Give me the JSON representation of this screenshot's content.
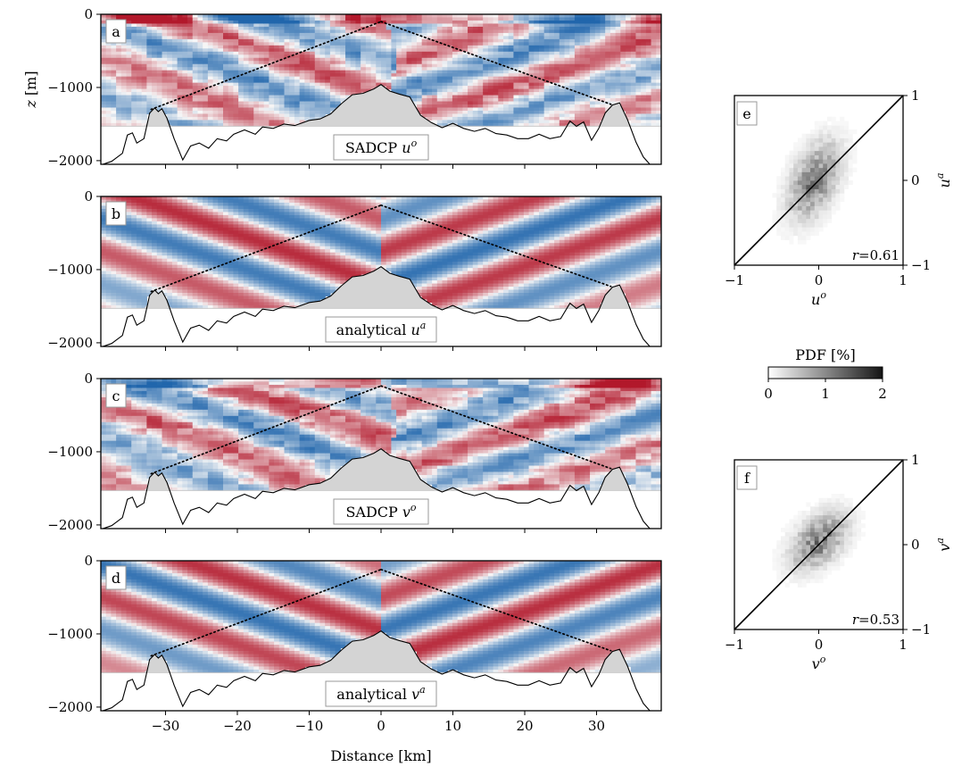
{
  "chart_data": [
    {
      "panel": "a",
      "type": "heatmap",
      "label_text": "SADCP",
      "label_var": "u",
      "label_sup": "o",
      "ylabel_var": "z",
      "ylabel_unit": "[m]",
      "xlim": [
        -39,
        39
      ],
      "ylim": [
        -2050,
        0
      ],
      "x_ticks": [
        -30,
        -20,
        -10,
        0,
        10,
        20,
        30
      ],
      "y_ticks": [
        0,
        -1000,
        -2000
      ],
      "y_tick_labels": [
        "0",
        "−1000",
        "−2000"
      ],
      "x_tick_labels_shown": false,
      "field_kind": "observed",
      "ray_left": [
        [
          -32,
          -1300
        ],
        [
          0,
          -100
        ]
      ],
      "ray_right": [
        [
          0,
          -100
        ],
        [
          32,
          -1230
        ]
      ],
      "colors": {
        "positive": "#b2182b",
        "negative": "#2166ac",
        "neutral": "#f7f7f7",
        "topography": "#d4d4d4"
      }
    },
    {
      "panel": "b",
      "type": "heatmap",
      "label_text": "analytical",
      "label_var": "u",
      "label_sup": "a",
      "xlim": [
        -39,
        39
      ],
      "ylim": [
        -2050,
        0
      ],
      "x_ticks": [
        -30,
        -20,
        -10,
        0,
        10,
        20,
        30
      ],
      "y_ticks": [
        0,
        -1000,
        -2000
      ],
      "y_tick_labels": [
        "0",
        "−1000",
        "−2000"
      ],
      "x_tick_labels_shown": false,
      "field_kind": "analytical",
      "ray_left": [
        [
          -32,
          -1300
        ],
        [
          0,
          -120
        ]
      ],
      "ray_right": [
        [
          0,
          -120
        ],
        [
          32,
          -1230
        ]
      ]
    },
    {
      "panel": "c",
      "type": "heatmap",
      "label_text": "SADCP",
      "label_var": "v",
      "label_sup": "o",
      "xlim": [
        -39,
        39
      ],
      "ylim": [
        -2050,
        0
      ],
      "x_ticks": [
        -30,
        -20,
        -10,
        0,
        10,
        20,
        30
      ],
      "y_ticks": [
        0,
        -1000,
        -2000
      ],
      "y_tick_labels": [
        "0",
        "−1000",
        "−2000"
      ],
      "x_tick_labels_shown": false,
      "field_kind": "observed",
      "ray_left": [
        [
          -32,
          -1300
        ],
        [
          0,
          -100
        ]
      ],
      "ray_right": [
        [
          0,
          -100
        ],
        [
          32,
          -1230
        ]
      ]
    },
    {
      "panel": "d",
      "type": "heatmap",
      "label_text": "analytical",
      "label_var": "v",
      "label_sup": "a",
      "xlabel": "Distance [km]",
      "xlim": [
        -39,
        39
      ],
      "ylim": [
        -2050,
        0
      ],
      "x_ticks": [
        -30,
        -20,
        -10,
        0,
        10,
        20,
        30
      ],
      "x_tick_labels": [
        "−30",
        "−20",
        "−10",
        "0",
        "10",
        "20",
        "30"
      ],
      "y_ticks": [
        0,
        -1000,
        -2000
      ],
      "y_tick_labels": [
        "0",
        "−1000",
        "−2000"
      ],
      "x_tick_labels_shown": true,
      "field_kind": "analytical",
      "ray_left": [
        [
          -32,
          -1300
        ],
        [
          0,
          -120
        ]
      ],
      "ray_right": [
        [
          0,
          -120
        ],
        [
          32,
          -1230
        ]
      ]
    },
    {
      "panel": "e",
      "type": "heatmap",
      "subtype": "2d-histogram",
      "xlim": [
        -1,
        1
      ],
      "ylim": [
        -1,
        1
      ],
      "x_ticks": [
        -1,
        0,
        1
      ],
      "x_tick_labels": [
        "−1",
        "0",
        "1"
      ],
      "y_ticks": [
        -1,
        0,
        1
      ],
      "y_tick_labels": [
        "−1",
        "0",
        "1"
      ],
      "y_axis_side": "right",
      "xlabel_var": "u",
      "xlabel_sup": "o",
      "ylabel_var": "u",
      "ylabel_sup": "a",
      "r_text": "r=0.61",
      "diagonal": [
        [
          -1,
          -1
        ],
        [
          1,
          1
        ]
      ],
      "cloud_center": [
        -0.05,
        0.0
      ],
      "cloud_spread": [
        0.2,
        0.3
      ]
    },
    {
      "panel": "f",
      "type": "heatmap",
      "subtype": "2d-histogram",
      "xlim": [
        -1,
        1
      ],
      "ylim": [
        -1,
        1
      ],
      "x_ticks": [
        -1,
        0,
        1
      ],
      "x_tick_labels": [
        "−1",
        "0",
        "1"
      ],
      "y_ticks": [
        -1,
        0,
        1
      ],
      "y_tick_labels": [
        "−1",
        "0",
        "1"
      ],
      "y_axis_side": "right",
      "xlabel_var": "v",
      "xlabel_sup": "o",
      "ylabel_var": "v",
      "ylabel_sup": "a",
      "r_text": "r=0.53",
      "diagonal": [
        [
          -1,
          -1
        ],
        [
          1,
          1
        ]
      ],
      "cloud_center": [
        0.0,
        0.05
      ],
      "cloud_spread": [
        0.22,
        0.22
      ]
    }
  ],
  "colorbar": {
    "title": "PDF [%]",
    "range": [
      0,
      2
    ],
    "ticks": [
      0,
      1,
      2
    ],
    "tick_labels": [
      "0",
      "1",
      "2"
    ],
    "colormap": "greys"
  }
}
